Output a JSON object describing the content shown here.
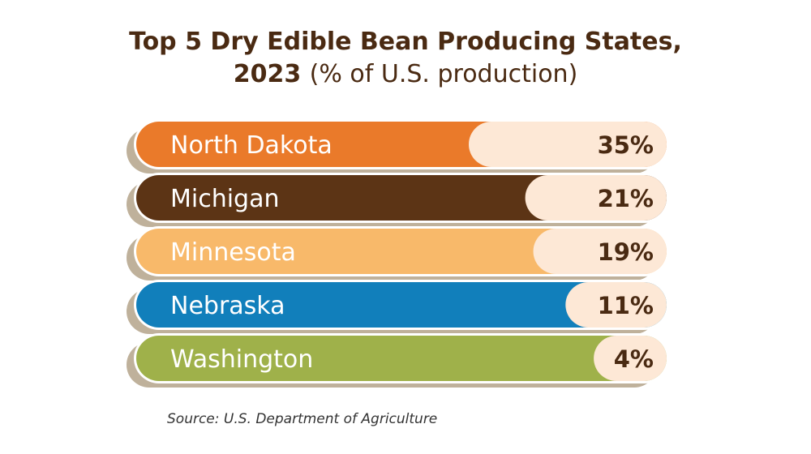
{
  "title": {
    "line1": "Top 5 Dry Edible Bean Producing States,",
    "year": "2023",
    "unit": "(% of U.S. production)"
  },
  "source": "Source: U.S. Department of Agriculture",
  "colors": {
    "title": "#4a2a12",
    "shadow": "#bfb19b",
    "pill_light": "#fde8d6",
    "value_text": "#4a2a12",
    "label_text": "#ffffff"
  },
  "chart_data": {
    "type": "bar",
    "categories": [
      "North Dakota",
      "Michigan",
      "Minnesota",
      "Nebraska",
      "Washington"
    ],
    "values": [
      35,
      21,
      19,
      11,
      4
    ],
    "value_labels": [
      "35%",
      "21%",
      "19%",
      "11%",
      "4%"
    ],
    "bar_colors": [
      "#ea7a2a",
      "#5c3415",
      "#f8b96a",
      "#117fbb",
      "#9fb14a"
    ],
    "title": "Top 5 Dry Edible Bean Producing States, 2023 (% of U.S. production)",
    "xlabel": "",
    "ylabel": "",
    "legend": "none"
  }
}
